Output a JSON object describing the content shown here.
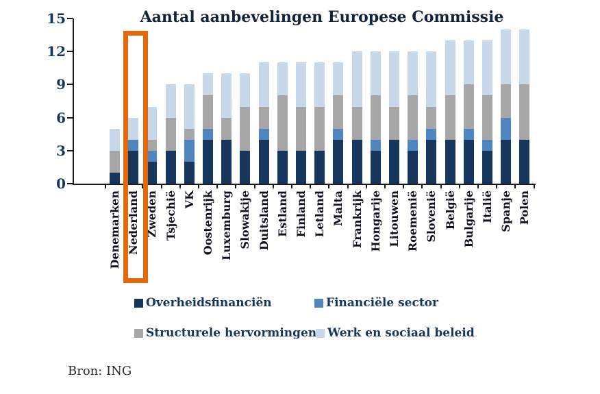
{
  "source": "Bron: ING",
  "chart_data": {
    "type": "bar",
    "stacked": true,
    "title": "Aantal aanbevelingen Europese Commissie",
    "categories": [
      "Denemarken",
      "Nederland",
      "Zweden",
      "Tsjechië",
      "VK",
      "Oostenrijk",
      "Luxemburg",
      "Slowakije",
      "Duitsland",
      "Estland",
      "Finland",
      "Letland",
      "Malta",
      "Frankrijk",
      "Hongarije",
      "Litouwen",
      "Roemenië",
      "Slovenië",
      "België",
      "Bulgarije",
      "Italië",
      "Spanje",
      "Polen"
    ],
    "series": [
      {
        "name": "Overheidsfinanciën",
        "color": "#17365D",
        "values": [
          1,
          3,
          2,
          3,
          2,
          4,
          4,
          3,
          4,
          3,
          3,
          3,
          4,
          4,
          3,
          4,
          3,
          4,
          4,
          4,
          3,
          4,
          4
        ]
      },
      {
        "name": "Financiële sector",
        "color": "#4F86C0",
        "values": [
          0,
          1,
          1,
          0,
          2,
          1,
          0,
          0,
          1,
          0,
          0,
          0,
          1,
          0,
          1,
          0,
          1,
          1,
          0,
          1,
          1,
          2,
          0
        ]
      },
      {
        "name": "Structurele hervormingen",
        "color": "#A7A7A7",
        "values": [
          2,
          0,
          1,
          3,
          1,
          3,
          2,
          4,
          2,
          5,
          4,
          4,
          3,
          3,
          4,
          3,
          4,
          2,
          4,
          4,
          4,
          3,
          5
        ]
      },
      {
        "name": "Werk en sociaal beleid",
        "color": "#C7D8EB",
        "values": [
          2,
          2,
          3,
          3,
          4,
          2,
          4,
          3,
          4,
          3,
          4,
          4,
          3,
          5,
          4,
          5,
          4,
          5,
          5,
          4,
          5,
          5,
          5
        ]
      }
    ],
    "totals": [
      5,
      6,
      7,
      9,
      9,
      10,
      10,
      10,
      11,
      11,
      11,
      11,
      11,
      12,
      12,
      12,
      12,
      12,
      13,
      13,
      13,
      14,
      14
    ],
    "ylim": [
      0,
      15
    ],
    "yticks": [
      0,
      3,
      6,
      9,
      12,
      15
    ],
    "legend_position": "bottom",
    "grid": false,
    "highlighted_category": "Nederland",
    "highlight_color": "#E3690B"
  },
  "legend": {
    "items": [
      {
        "label": "Overheidsfinanciën",
        "color": "#17365D"
      },
      {
        "label": "Financiële sector",
        "color": "#4F86C0"
      },
      {
        "label": "Structurele hervormingen",
        "color": "#A7A7A7"
      },
      {
        "label": "Werk en sociaal beleid",
        "color": "#C7D8EB"
      }
    ]
  }
}
